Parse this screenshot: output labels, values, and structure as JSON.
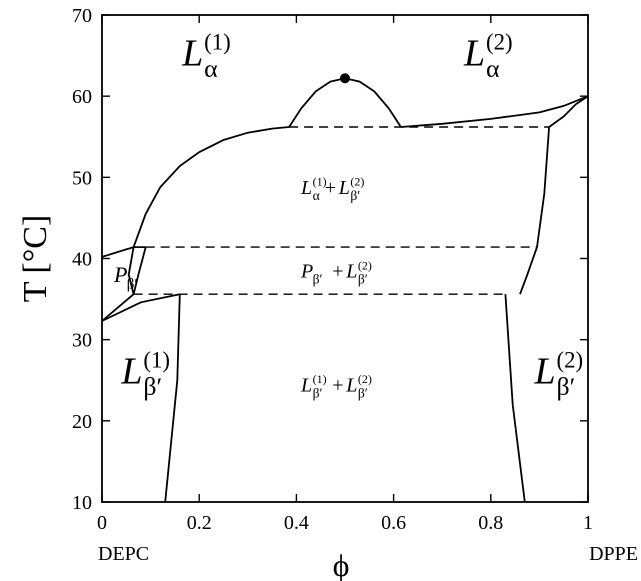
{
  "chart_data": {
    "type": "line",
    "title": "",
    "xlabel": "ϕ",
    "ylabel": "T [°C]",
    "xlim": [
      0,
      1
    ],
    "ylim": [
      10,
      70
    ],
    "grid": false,
    "xticks": [
      0,
      0.2,
      0.4,
      0.6,
      0.8,
      1
    ],
    "xtick_labels": [
      "0",
      "0.2",
      "0.4",
      "0.6",
      "0.8",
      "1"
    ],
    "yticks": [
      10,
      20,
      30,
      40,
      50,
      60,
      70
    ],
    "ytick_labels": [
      "10",
      "20",
      "30",
      "40",
      "50",
      "60",
      "70"
    ],
    "endpoint_labels": {
      "left": "DEPC",
      "right": "DPPE"
    },
    "critical_point": {
      "x": 0.5,
      "y": 62.2
    },
    "boundaries": [
      {
        "id": "fluid-liquidus-left",
        "style": "solid",
        "points": [
          [
            0.065,
            41.4
          ],
          [
            0.09,
            45.5
          ],
          [
            0.12,
            48.8
          ],
          [
            0.16,
            51.4
          ],
          [
            0.2,
            53.1
          ],
          [
            0.25,
            54.6
          ],
          [
            0.3,
            55.5
          ],
          [
            0.35,
            56.0
          ],
          [
            0.385,
            56.2
          ]
        ]
      },
      {
        "id": "miscibility-dome",
        "style": "solid",
        "points": [
          [
            0.385,
            56.2
          ],
          [
            0.41,
            58.5
          ],
          [
            0.44,
            60.6
          ],
          [
            0.47,
            61.8
          ],
          [
            0.5,
            62.2
          ],
          [
            0.53,
            61.8
          ],
          [
            0.56,
            60.6
          ],
          [
            0.59,
            58.5
          ],
          [
            0.615,
            56.2
          ]
        ]
      },
      {
        "id": "fluid-liquidus-right",
        "style": "solid",
        "points": [
          [
            0.615,
            56.2
          ],
          [
            0.7,
            56.6
          ],
          [
            0.8,
            57.2
          ],
          [
            0.9,
            58.0
          ],
          [
            0.95,
            58.8
          ],
          [
            1.0,
            60.0
          ]
        ]
      },
      {
        "id": "solidus-right-upper",
        "style": "solid",
        "points": [
          [
            0.92,
            56.2
          ],
          [
            0.95,
            57.5
          ],
          [
            0.975,
            59.0
          ],
          [
            1.0,
            60.0
          ]
        ]
      },
      {
        "id": "solidus-right-steep",
        "style": "solid",
        "points": [
          [
            0.92,
            56.2
          ],
          [
            0.91,
            48.0
          ],
          [
            0.895,
            41.4
          ],
          [
            0.875,
            38.0
          ],
          [
            0.86,
            35.6
          ]
        ]
      },
      {
        "id": "lower-right-boundary",
        "style": "solid",
        "points": [
          [
            0.83,
            35.6
          ],
          [
            0.845,
            22.0
          ],
          [
            0.87,
            10.0
          ]
        ]
      },
      {
        "id": "lower-left-boundary",
        "style": "solid",
        "points": [
          [
            0.16,
            35.6
          ],
          [
            0.155,
            25.0
          ],
          [
            0.13,
            10.0
          ]
        ]
      },
      {
        "id": "ripple-left-top",
        "style": "solid",
        "points": [
          [
            0.0,
            40.2
          ],
          [
            0.065,
            41.4
          ],
          [
            0.09,
            41.4
          ]
        ]
      },
      {
        "id": "ripple-right-edge",
        "style": "solid",
        "points": [
          [
            0.09,
            41.4
          ],
          [
            0.075,
            38.0
          ],
          [
            0.065,
            35.6
          ]
        ]
      },
      {
        "id": "ripple-left-lower",
        "style": "solid",
        "points": [
          [
            0.0,
            32.3
          ],
          [
            0.065,
            35.6
          ]
        ]
      },
      {
        "id": "ripple-left-lowest",
        "style": "solid",
        "points": [
          [
            0.0,
            32.3
          ],
          [
            0.08,
            34.6
          ],
          [
            0.16,
            35.6
          ]
        ]
      },
      {
        "id": "ripple-inner-left",
        "style": "solid",
        "points": [
          [
            0.065,
            41.4
          ],
          [
            0.055,
            38.0
          ],
          [
            0.065,
            35.6
          ]
        ]
      },
      {
        "id": "tieline-upper",
        "style": "dashed",
        "points": [
          [
            0.385,
            56.2
          ],
          [
            0.92,
            56.2
          ]
        ]
      },
      {
        "id": "tieline-middle",
        "style": "dashed",
        "points": [
          [
            0.09,
            41.4
          ],
          [
            0.895,
            41.4
          ]
        ]
      },
      {
        "id": "tieline-lower",
        "style": "dashed",
        "points": [
          [
            0.065,
            35.6
          ],
          [
            0.83,
            35.6
          ]
        ]
      }
    ],
    "regions": [
      {
        "id": "L-alpha-1",
        "main": "L",
        "sub": "α",
        "sup": "(1)",
        "x": 0.2,
        "y": 65.2,
        "size": "large"
      },
      {
        "id": "L-alpha-2",
        "main": "L",
        "sub": "α",
        "sup": "(2)",
        "x": 0.78,
        "y": 65.2,
        "size": "large"
      },
      {
        "id": "P-beta-prime",
        "main": "P",
        "sub": "β′",
        "sup": "",
        "x": 0.045,
        "y": 37.9,
        "size": "small"
      },
      {
        "id": "L-beta-1",
        "main": "L",
        "sub": "β′",
        "sup": "(1)",
        "x": 0.075,
        "y": 26.0,
        "size": "large"
      },
      {
        "id": "L-beta-2",
        "main": "L",
        "sub": "β′",
        "sup": "(2)",
        "x": 0.925,
        "y": 26.0,
        "size": "large"
      }
    ],
    "two_phase_labels": [
      {
        "id": "coex-fluid-gel",
        "y": 48.8,
        "parts": [
          {
            "main": "L",
            "sub": "α",
            "sup": "(1)"
          },
          {
            "main": "L",
            "sub": "β′",
            "sup": "(2)"
          }
        ],
        "joiner": "+"
      },
      {
        "id": "coex-ripple-gel",
        "y": 38.5,
        "parts": [
          {
            "main": "P",
            "sub": "β′",
            "sup": ""
          },
          {
            "main": "L",
            "sub": "β′",
            "sup": "(2)"
          }
        ],
        "joiner": "+"
      },
      {
        "id": "coex-gel-gel",
        "y": 24.5,
        "parts": [
          {
            "main": "L",
            "sub": "β′",
            "sup": "(1)"
          },
          {
            "main": "L",
            "sub": "β′",
            "sup": "(2)"
          }
        ],
        "joiner": "+"
      }
    ]
  }
}
